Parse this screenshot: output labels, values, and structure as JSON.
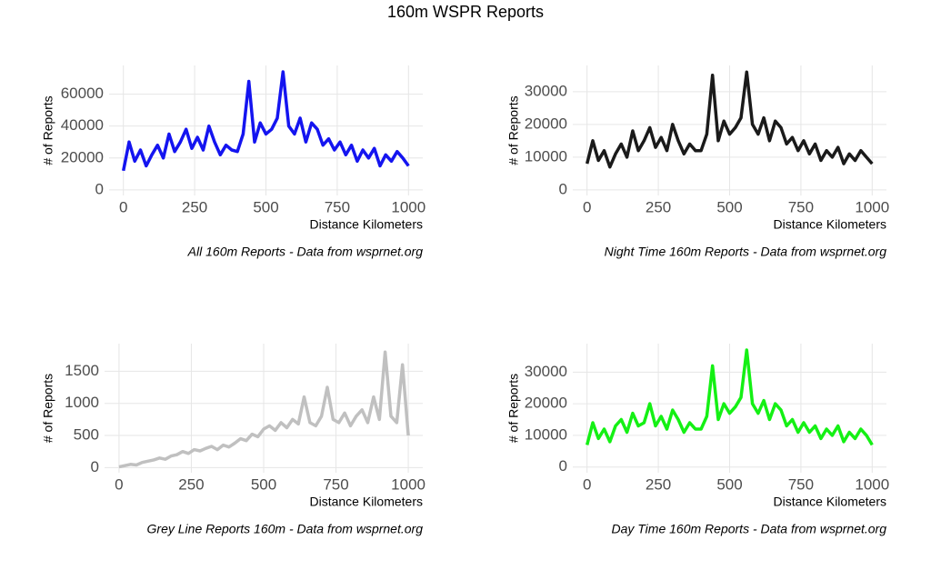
{
  "title": "160m WSPR Reports",
  "chart_data": [
    {
      "type": "line",
      "caption": "All 160m Reports - Data from wsprnet.org",
      "xlabel": "Distance Kilometers",
      "ylabel": "# of Reports",
      "x": [
        0,
        20,
        40,
        60,
        80,
        100,
        120,
        140,
        160,
        180,
        200,
        220,
        240,
        260,
        280,
        300,
        320,
        340,
        360,
        380,
        400,
        420,
        440,
        460,
        480,
        500,
        520,
        540,
        560,
        580,
        600,
        620,
        640,
        660,
        680,
        700,
        720,
        740,
        760,
        780,
        800,
        820,
        840,
        860,
        880,
        900,
        920,
        940,
        960,
        980,
        1000
      ],
      "values": [
        12000,
        30000,
        18000,
        25000,
        15000,
        22000,
        28000,
        20000,
        35000,
        24000,
        30000,
        38000,
        26000,
        33000,
        25000,
        40000,
        30000,
        22000,
        28000,
        25000,
        24000,
        35000,
        68000,
        30000,
        42000,
        35000,
        38000,
        45000,
        74000,
        40000,
        35000,
        45000,
        30000,
        42000,
        38000,
        28000,
        32000,
        25000,
        30000,
        22000,
        28000,
        18000,
        25000,
        20000,
        26000,
        15000,
        22000,
        18000,
        24000,
        20000,
        15000
      ],
      "color": "#1414f0",
      "xlim": [
        -50,
        1050
      ],
      "ylim": [
        -3500,
        78000
      ],
      "xticks": [
        0,
        250,
        500,
        750,
        1000
      ],
      "yticks": [
        0,
        20000,
        40000,
        60000
      ],
      "grid": true
    },
    {
      "type": "line",
      "caption": "Night Time 160m Reports - Data from wsprnet.org",
      "xlabel": "Distance Kilometers",
      "ylabel": "# of Reports",
      "x": [
        0,
        20,
        40,
        60,
        80,
        100,
        120,
        140,
        160,
        180,
        200,
        220,
        240,
        260,
        280,
        300,
        320,
        340,
        360,
        380,
        400,
        420,
        440,
        460,
        480,
        500,
        520,
        540,
        560,
        580,
        600,
        620,
        640,
        660,
        680,
        700,
        720,
        740,
        760,
        780,
        800,
        820,
        840,
        860,
        880,
        900,
        920,
        940,
        960,
        980,
        1000
      ],
      "values": [
        8000,
        15000,
        9000,
        12000,
        7000,
        11000,
        14000,
        10000,
        18000,
        12000,
        15000,
        19000,
        13000,
        16000,
        12000,
        20000,
        15000,
        11000,
        14000,
        12000,
        12000,
        17000,
        35000,
        15000,
        21000,
        17000,
        19000,
        22000,
        36000,
        20000,
        17000,
        22000,
        15000,
        21000,
        19000,
        14000,
        16000,
        12000,
        15000,
        11000,
        14000,
        9000,
        12000,
        10000,
        13000,
        8000,
        11000,
        9000,
        12000,
        10000,
        8000
      ],
      "color": "#1a1a1a",
      "xlim": [
        -50,
        1050
      ],
      "ylim": [
        -1700,
        38000
      ],
      "xticks": [
        0,
        250,
        500,
        750,
        1000
      ],
      "yticks": [
        0,
        10000,
        20000,
        30000
      ],
      "grid": true
    },
    {
      "type": "line",
      "caption": "Grey Line Reports 160m - Data from wsprnet.org",
      "xlabel": "Distance Kilometers",
      "ylabel": "# of Reports",
      "x": [
        0,
        20,
        40,
        60,
        80,
        100,
        120,
        140,
        160,
        180,
        200,
        220,
        240,
        260,
        280,
        300,
        320,
        340,
        360,
        380,
        400,
        420,
        440,
        460,
        480,
        500,
        520,
        540,
        560,
        580,
        600,
        620,
        640,
        660,
        680,
        700,
        720,
        740,
        760,
        780,
        800,
        820,
        840,
        860,
        880,
        900,
        920,
        940,
        960,
        980,
        1000
      ],
      "values": [
        10,
        30,
        50,
        40,
        80,
        100,
        120,
        150,
        130,
        180,
        200,
        250,
        220,
        280,
        260,
        300,
        330,
        280,
        350,
        320,
        380,
        450,
        420,
        520,
        480,
        600,
        650,
        580,
        700,
        620,
        750,
        680,
        1100,
        700,
        650,
        800,
        1250,
        750,
        700,
        850,
        650,
        800,
        900,
        700,
        1100,
        750,
        1800,
        800,
        700,
        1600,
        500
      ],
      "color": "#c0c0c0",
      "xlim": [
        -50,
        1050
      ],
      "ylim": [
        -80,
        1930
      ],
      "xticks": [
        0,
        250,
        500,
        750,
        1000
      ],
      "yticks": [
        0,
        500,
        1000,
        1500
      ],
      "grid": true
    },
    {
      "type": "line",
      "caption": "Day Time 160m Reports - Data from wsprnet.org",
      "xlabel": "Distance Kilometers",
      "ylabel": "# of Reports",
      "x": [
        0,
        20,
        40,
        60,
        80,
        100,
        120,
        140,
        160,
        180,
        200,
        220,
        240,
        260,
        280,
        300,
        320,
        340,
        360,
        380,
        400,
        420,
        440,
        460,
        480,
        500,
        520,
        540,
        560,
        580,
        600,
        620,
        640,
        660,
        680,
        700,
        720,
        740,
        760,
        780,
        800,
        820,
        840,
        860,
        880,
        900,
        920,
        940,
        960,
        980,
        1000
      ],
      "values": [
        7000,
        14000,
        9000,
        12000,
        8000,
        13000,
        15000,
        11000,
        17000,
        13000,
        14000,
        20000,
        13000,
        16000,
        12000,
        18000,
        15000,
        11000,
        14000,
        12000,
        12000,
        16000,
        32000,
        15000,
        20000,
        17000,
        19000,
        22000,
        37000,
        20000,
        17000,
        21000,
        15000,
        20000,
        18000,
        13000,
        15000,
        11000,
        14000,
        11000,
        13000,
        9000,
        12000,
        10000,
        13000,
        8000,
        11000,
        9000,
        12000,
        10000,
        7000
      ],
      "color": "#14f014",
      "xlim": [
        -50,
        1050
      ],
      "ylim": [
        -1800,
        39000
      ],
      "xticks": [
        0,
        250,
        500,
        750,
        1000
      ],
      "yticks": [
        0,
        10000,
        20000,
        30000
      ],
      "grid": true
    }
  ]
}
